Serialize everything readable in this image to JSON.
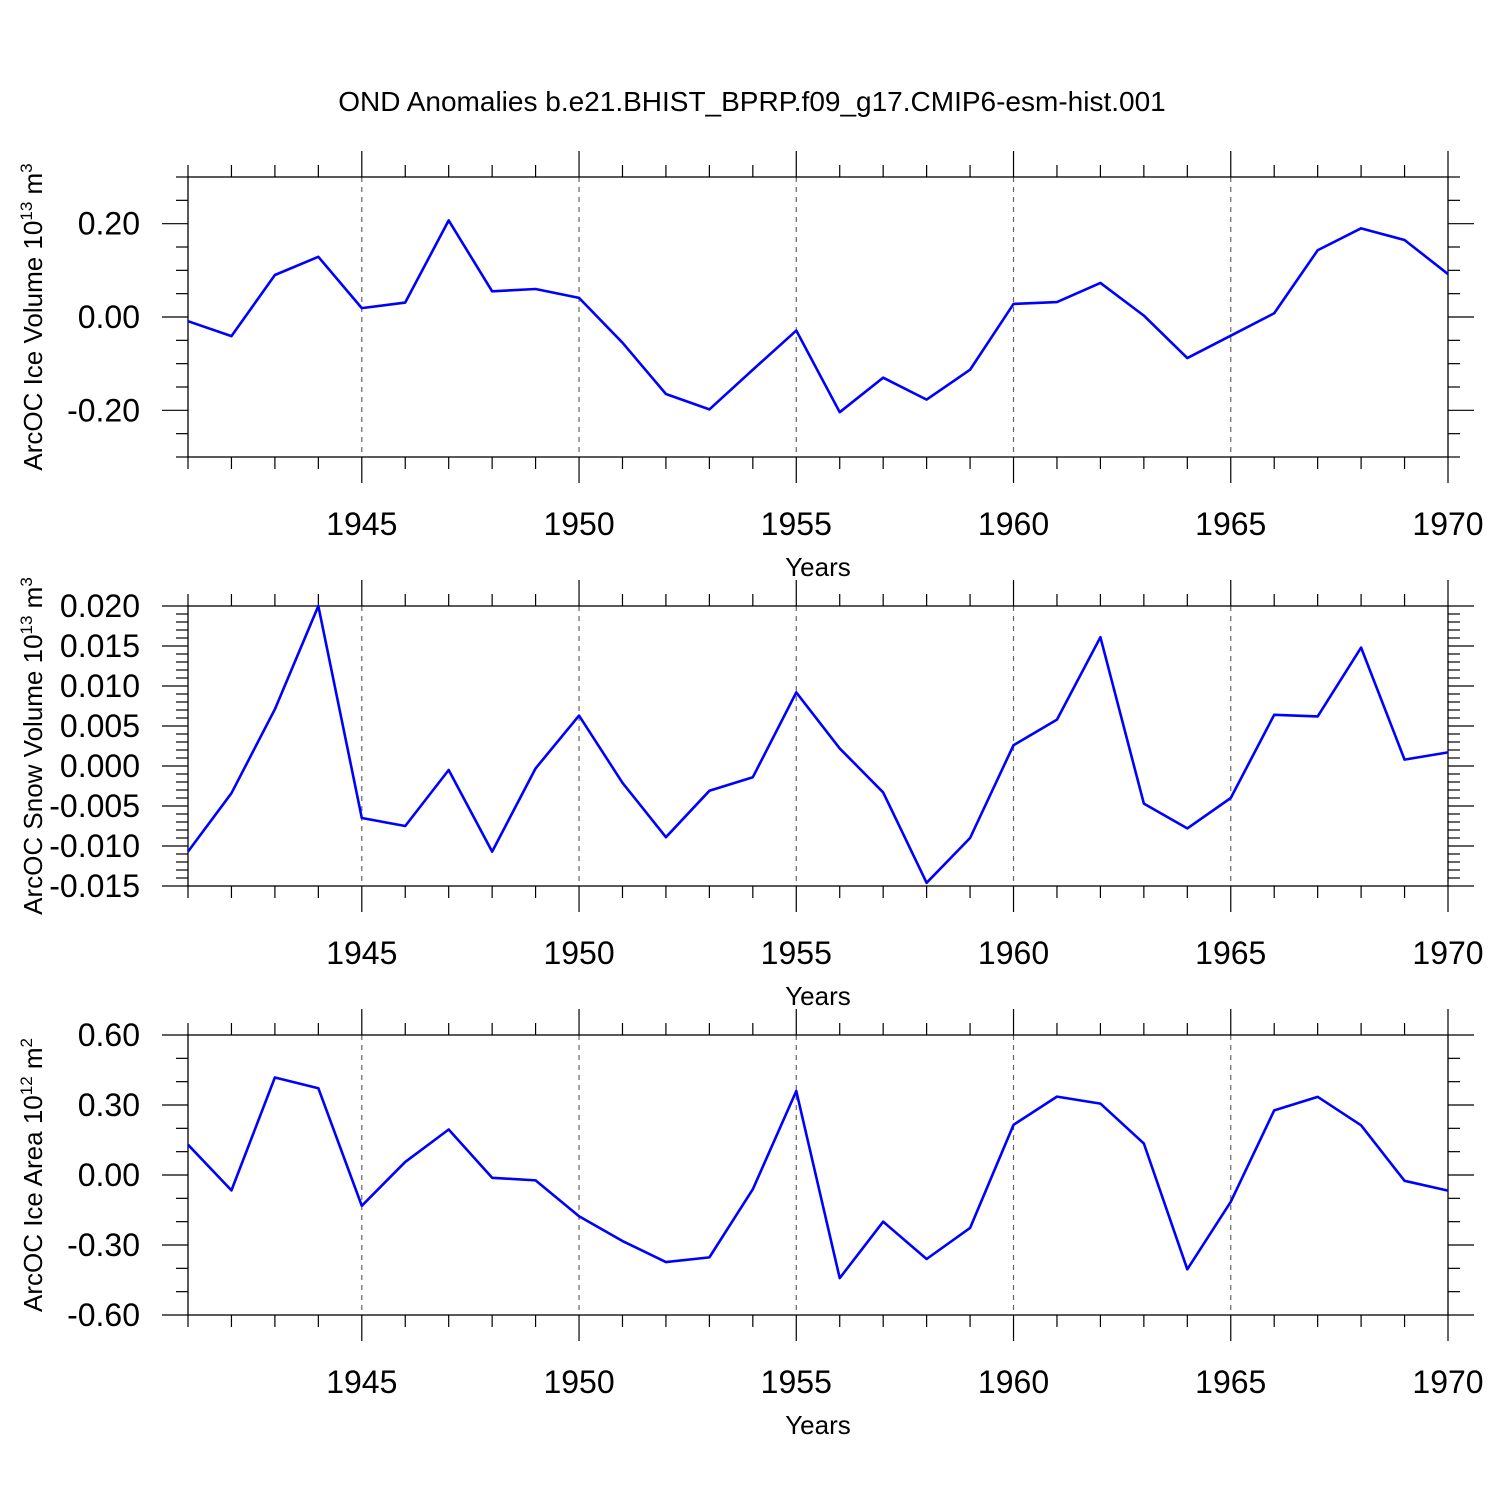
{
  "title": "OND Anomalies b.e21.BHIST_BPRP.f09_g17.CMIP6-esm-hist.001",
  "colors": {
    "series": "#0000ff",
    "frame": "#000000",
    "grid": "#666666"
  },
  "chart_data": [
    {
      "type": "line",
      "name": "ice-volume",
      "ylabel_main": "ArcOC Ice Volume 10",
      "ylabel_exp": "13",
      "ylabel_unit": " m",
      "ylabel_unit_exp": "3",
      "xlabel": "Years",
      "xlim": [
        1941,
        1970
      ],
      "ylim": [
        -0.3,
        0.3
      ],
      "yticks": [
        -0.2,
        0.0,
        0.2
      ],
      "ytick_labels": [
        "-0.20",
        "0.00",
        "0.20"
      ],
      "yminor_step": 0.05,
      "xticks": [
        1945,
        1950,
        1955,
        1960,
        1965,
        1970
      ],
      "xtick_labels": [
        "1945",
        "1950",
        "1955",
        "1960",
        "1965",
        "1970"
      ],
      "grid_x": [
        1945,
        1950,
        1955,
        1960,
        1965
      ],
      "x": [
        1941,
        1942,
        1943,
        1944,
        1945,
        1946,
        1947,
        1948,
        1949,
        1950,
        1951,
        1952,
        1953,
        1954,
        1955,
        1956,
        1957,
        1958,
        1959,
        1960,
        1961,
        1962,
        1963,
        1964,
        1965,
        1966,
        1967,
        1968,
        1969,
        1970
      ],
      "values": [
        -0.009,
        -0.041,
        0.09,
        0.129,
        0.019,
        0.031,
        0.207,
        0.055,
        0.06,
        0.041,
        -0.055,
        -0.165,
        -0.198,
        -0.113,
        -0.029,
        -0.204,
        -0.13,
        -0.177,
        -0.113,
        0.028,
        0.032,
        0.073,
        0.003,
        -0.088,
        -0.04,
        0.008,
        0.143,
        0.19,
        0.165,
        0.092
      ]
    },
    {
      "type": "line",
      "name": "snow-volume",
      "ylabel_main": "ArcOC Snow Volume 10",
      "ylabel_exp": "13",
      "ylabel_unit": " m",
      "ylabel_unit_exp": "3",
      "xlabel": "Years",
      "xlim": [
        1941,
        1970
      ],
      "ylim": [
        -0.015,
        0.02
      ],
      "yticks": [
        -0.015,
        -0.01,
        -0.005,
        0.0,
        0.005,
        0.01,
        0.015,
        0.02
      ],
      "ytick_labels": [
        "-0.015",
        "-0.010",
        "-0.005",
        "0.000",
        "0.005",
        "0.010",
        "0.015",
        "0.020"
      ],
      "yminor_step": 0.001,
      "xticks": [
        1945,
        1950,
        1955,
        1960,
        1965,
        1970
      ],
      "xtick_labels": [
        "1945",
        "1950",
        "1955",
        "1960",
        "1965",
        "1970"
      ],
      "grid_x": [
        1945,
        1950,
        1955,
        1960,
        1965
      ],
      "x": [
        1941,
        1942,
        1943,
        1944,
        1945,
        1946,
        1947,
        1948,
        1949,
        1950,
        1951,
        1952,
        1953,
        1954,
        1955,
        1956,
        1957,
        1958,
        1959,
        1960,
        1961,
        1962,
        1963,
        1964,
        1965,
        1966,
        1967,
        1968,
        1969,
        1970
      ],
      "values": [
        -0.0107,
        -0.0034,
        0.0071,
        0.02,
        -0.0065,
        -0.0075,
        -0.0005,
        -0.0107,
        -0.0003,
        0.0063,
        -0.0021,
        -0.0089,
        -0.0031,
        -0.0014,
        0.0092,
        0.0022,
        -0.0033,
        -0.0146,
        -0.009,
        0.0026,
        0.0058,
        0.0161,
        -0.0047,
        -0.0078,
        -0.004,
        0.0064,
        0.0062,
        0.0148,
        0.0008,
        0.0017
      ]
    },
    {
      "type": "line",
      "name": "ice-area",
      "ylabel_main": "ArcOC Ice Area 10",
      "ylabel_exp": "12",
      "ylabel_unit": " m",
      "ylabel_unit_exp": "2",
      "xlabel": "Years",
      "xlim": [
        1941,
        1970
      ],
      "ylim": [
        -0.6,
        0.6
      ],
      "yticks": [
        -0.6,
        -0.3,
        0.0,
        0.3,
        0.6
      ],
      "ytick_labels": [
        "-0.60",
        "-0.30",
        "0.00",
        "0.30",
        "0.60"
      ],
      "yminor_step": 0.1,
      "xticks": [
        1945,
        1950,
        1955,
        1960,
        1965,
        1970
      ],
      "xtick_labels": [
        "1945",
        "1950",
        "1955",
        "1960",
        "1965",
        "1970"
      ],
      "grid_x": [
        1945,
        1950,
        1955,
        1960,
        1965
      ],
      "x": [
        1941,
        1942,
        1943,
        1944,
        1945,
        1946,
        1947,
        1948,
        1949,
        1950,
        1951,
        1952,
        1953,
        1954,
        1955,
        1956,
        1957,
        1958,
        1959,
        1960,
        1961,
        1962,
        1963,
        1964,
        1965,
        1966,
        1967,
        1968,
        1969,
        1970
      ],
      "values": [
        0.13,
        -0.066,
        0.418,
        0.372,
        -0.132,
        0.056,
        0.195,
        -0.012,
        -0.023,
        -0.177,
        -0.283,
        -0.373,
        -0.353,
        -0.061,
        0.36,
        -0.442,
        -0.2,
        -0.36,
        -0.227,
        0.215,
        0.336,
        0.306,
        0.135,
        -0.404,
        -0.115,
        0.277,
        0.335,
        0.213,
        -0.025,
        -0.067
      ]
    }
  ]
}
